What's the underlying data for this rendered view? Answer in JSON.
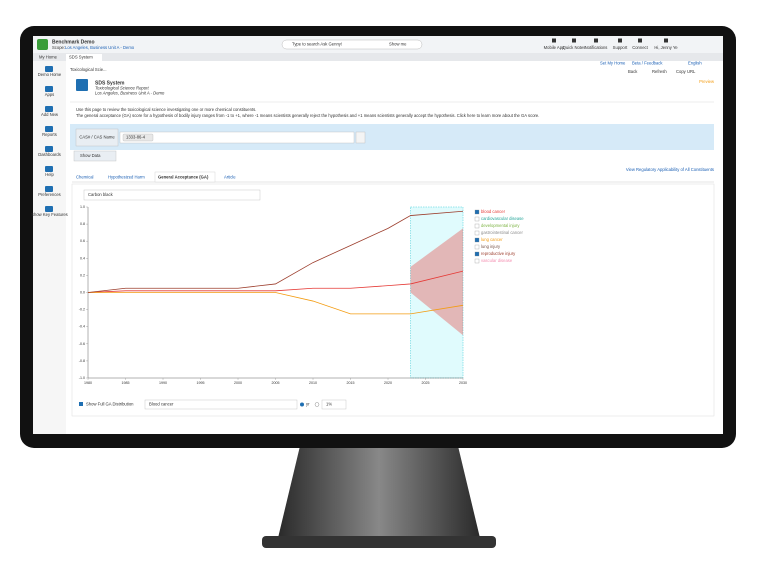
{
  "header": {
    "app": "Benchmark Demo",
    "scope_label": "Scope:",
    "scope": "Los Angeles, Business Unit A - Demo",
    "search": "Type to search Ask Genny!",
    "show_me": "Show me",
    "tools": [
      "Mobile App",
      "Quick Notes",
      "Notifications",
      "Support",
      "Connect",
      "Hi, Jenny Ye"
    ]
  },
  "tabs": [
    "My Home",
    "SDS System"
  ],
  "sidebar": [
    "Demo Home",
    "Apps",
    "Add New",
    "Reports",
    "Dashboards",
    "Help",
    "Preferences",
    "Show Key Features"
  ],
  "page_tab": "Toxicological Scie...",
  "top_links": [
    "Set My Home",
    "Beta / Feedback",
    "English"
  ],
  "actions": [
    "Back",
    "Refresh",
    "Copy URL"
  ],
  "report": {
    "title": "SDS System",
    "subtitle": "Toxicological Science Report",
    "scope": "Los Angeles, Business Unit A - Demo",
    "status": "Preview"
  },
  "intro": [
    "Use this page to review the toxicological science investigating one or more chemical constituents.",
    "The general acceptance (GA) score for a hypothesis of bodily injury ranges from -1 to +1, where -1 means scientists generally reject the hypothesis and +1 means scientists generally accept the hypothesis. Click here to learn more about the GA score."
  ],
  "filter": {
    "label": "CAS# / CAS Name",
    "chip": "1333-86-4",
    "button": "Show Data"
  },
  "subtabs": [
    "Chemical",
    "Hypothesized Harm",
    "General Acceptance (GA)",
    "Article"
  ],
  "regulatory_link": "View Regulatory Applicability of All Constituents",
  "chart": {
    "type": "line",
    "selector": "Carbon black",
    "x": [
      1980,
      1985,
      1990,
      1995,
      2000,
      2005,
      2010,
      2015,
      2020,
      2023,
      2030
    ],
    "xlim": [
      1980,
      2030
    ],
    "xticks": [
      1980,
      1985,
      1990,
      1995,
      2000,
      2005,
      2010,
      2015,
      2020,
      2025,
      2030
    ],
    "ylim": [
      -1,
      1
    ],
    "yticks": [
      {
        "value": 1,
        "label": "1.0"
      },
      0.8,
      0.6,
      0.4,
      0.2,
      {
        "value": 0,
        "label": "0.0"
      },
      -0.2,
      -0.4,
      -0.6,
      -0.8,
      {
        "value": -1,
        "label": "-1.0"
      }
    ],
    "series": [
      {
        "name": "blood cancer",
        "color": "#e53935",
        "checked": true,
        "values": [
          0,
          0.02,
          0.02,
          0.02,
          0.02,
          0.02,
          0.05,
          0.05,
          0.08,
          0.1,
          0.25
        ]
      },
      {
        "name": "cardiovascular disease",
        "color": "#26a69a",
        "checked": false
      },
      {
        "name": "developmental injury",
        "color": "#7cb342",
        "checked": false
      },
      {
        "name": "gastrointestinal cancer",
        "color": "#8d8d8d",
        "checked": false
      },
      {
        "name": "lung cancer",
        "color": "#f39c12",
        "checked": true,
        "values": [
          0,
          0,
          0,
          0,
          0,
          0,
          -0.1,
          -0.25,
          -0.25,
          -0.25,
          -0.15
        ]
      },
      {
        "name": "lung injury",
        "color": "#795548",
        "checked": false
      },
      {
        "name": "reproductive injury",
        "color": "#9c3d2c",
        "checked": true,
        "values": [
          0,
          0.05,
          0.05,
          0.05,
          0.05,
          0.1,
          0.35,
          0.55,
          0.75,
          0.9,
          0.95
        ]
      },
      {
        "name": "vascular disease",
        "color": "#f48fb1",
        "checked": false
      }
    ],
    "forecast": {
      "x": [
        2023,
        2030
      ],
      "lower": [
        0,
        -0.5
      ],
      "upper": [
        0.3,
        0.75
      ],
      "color": "#e53935"
    }
  },
  "controls": {
    "checkbox": "Show Full GA Distribution",
    "series": "Blood cancer",
    "unit": "yr",
    "percent": "1%"
  }
}
